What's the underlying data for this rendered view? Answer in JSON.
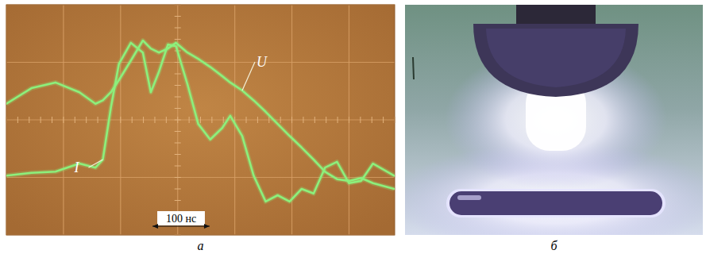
{
  "chart_data": {
    "type": "line",
    "x": [
      0,
      44,
      86,
      128,
      156,
      169,
      183,
      197,
      218,
      239,
      253,
      267,
      283,
      297,
      317,
      336,
      357,
      378,
      392,
      413,
      433,
      454,
      475,
      496,
      517,
      538,
      558,
      579,
      600,
      621,
      642,
      679
    ],
    "series": [
      {
        "name": "U",
        "color": "#8cf07c",
        "values": [
          2.28,
          2.55,
          2.65,
          2.48,
          2.28,
          2.34,
          2.48,
          2.69,
          3.03,
          3.38,
          3.24,
          3.17,
          3.24,
          3.34,
          3.17,
          3.06,
          2.92,
          2.76,
          2.65,
          2.51,
          2.34,
          2.14,
          1.93,
          1.72,
          1.52,
          1.31,
          1.1,
          0.97,
          0.94,
          0.99,
          0.9,
          0.8
        ]
      },
      {
        "name": "I",
        "color": "#8cf07c",
        "values": [
          1.03,
          1.08,
          1.1,
          1.24,
          1.17,
          1.31,
          2.21,
          2.97,
          3.34,
          3.17,
          2.48,
          2.83,
          3.31,
          3.28,
          2.62,
          1.93,
          1.66,
          1.86,
          2.07,
          1.72,
          1.03,
          0.58,
          0.69,
          0.58,
          0.8,
          0.72,
          1.17,
          1.27,
          0.9,
          0.94,
          1.24,
          1.03
        ]
      }
    ],
    "xlim": [
      0,
      680
    ],
    "xticks": [
      0,
      100,
      200,
      300,
      400,
      500,
      600
    ],
    "ylim": [
      0,
      4
    ],
    "yticks": [
      0,
      1,
      2,
      3,
      4
    ],
    "grid": true,
    "tick_labels": false,
    "annotations": [
      {
        "text": "100 нс",
        "value": 100
      }
    ]
  },
  "figure": {
    "panel_labels": [
      "а",
      "б"
    ]
  }
}
